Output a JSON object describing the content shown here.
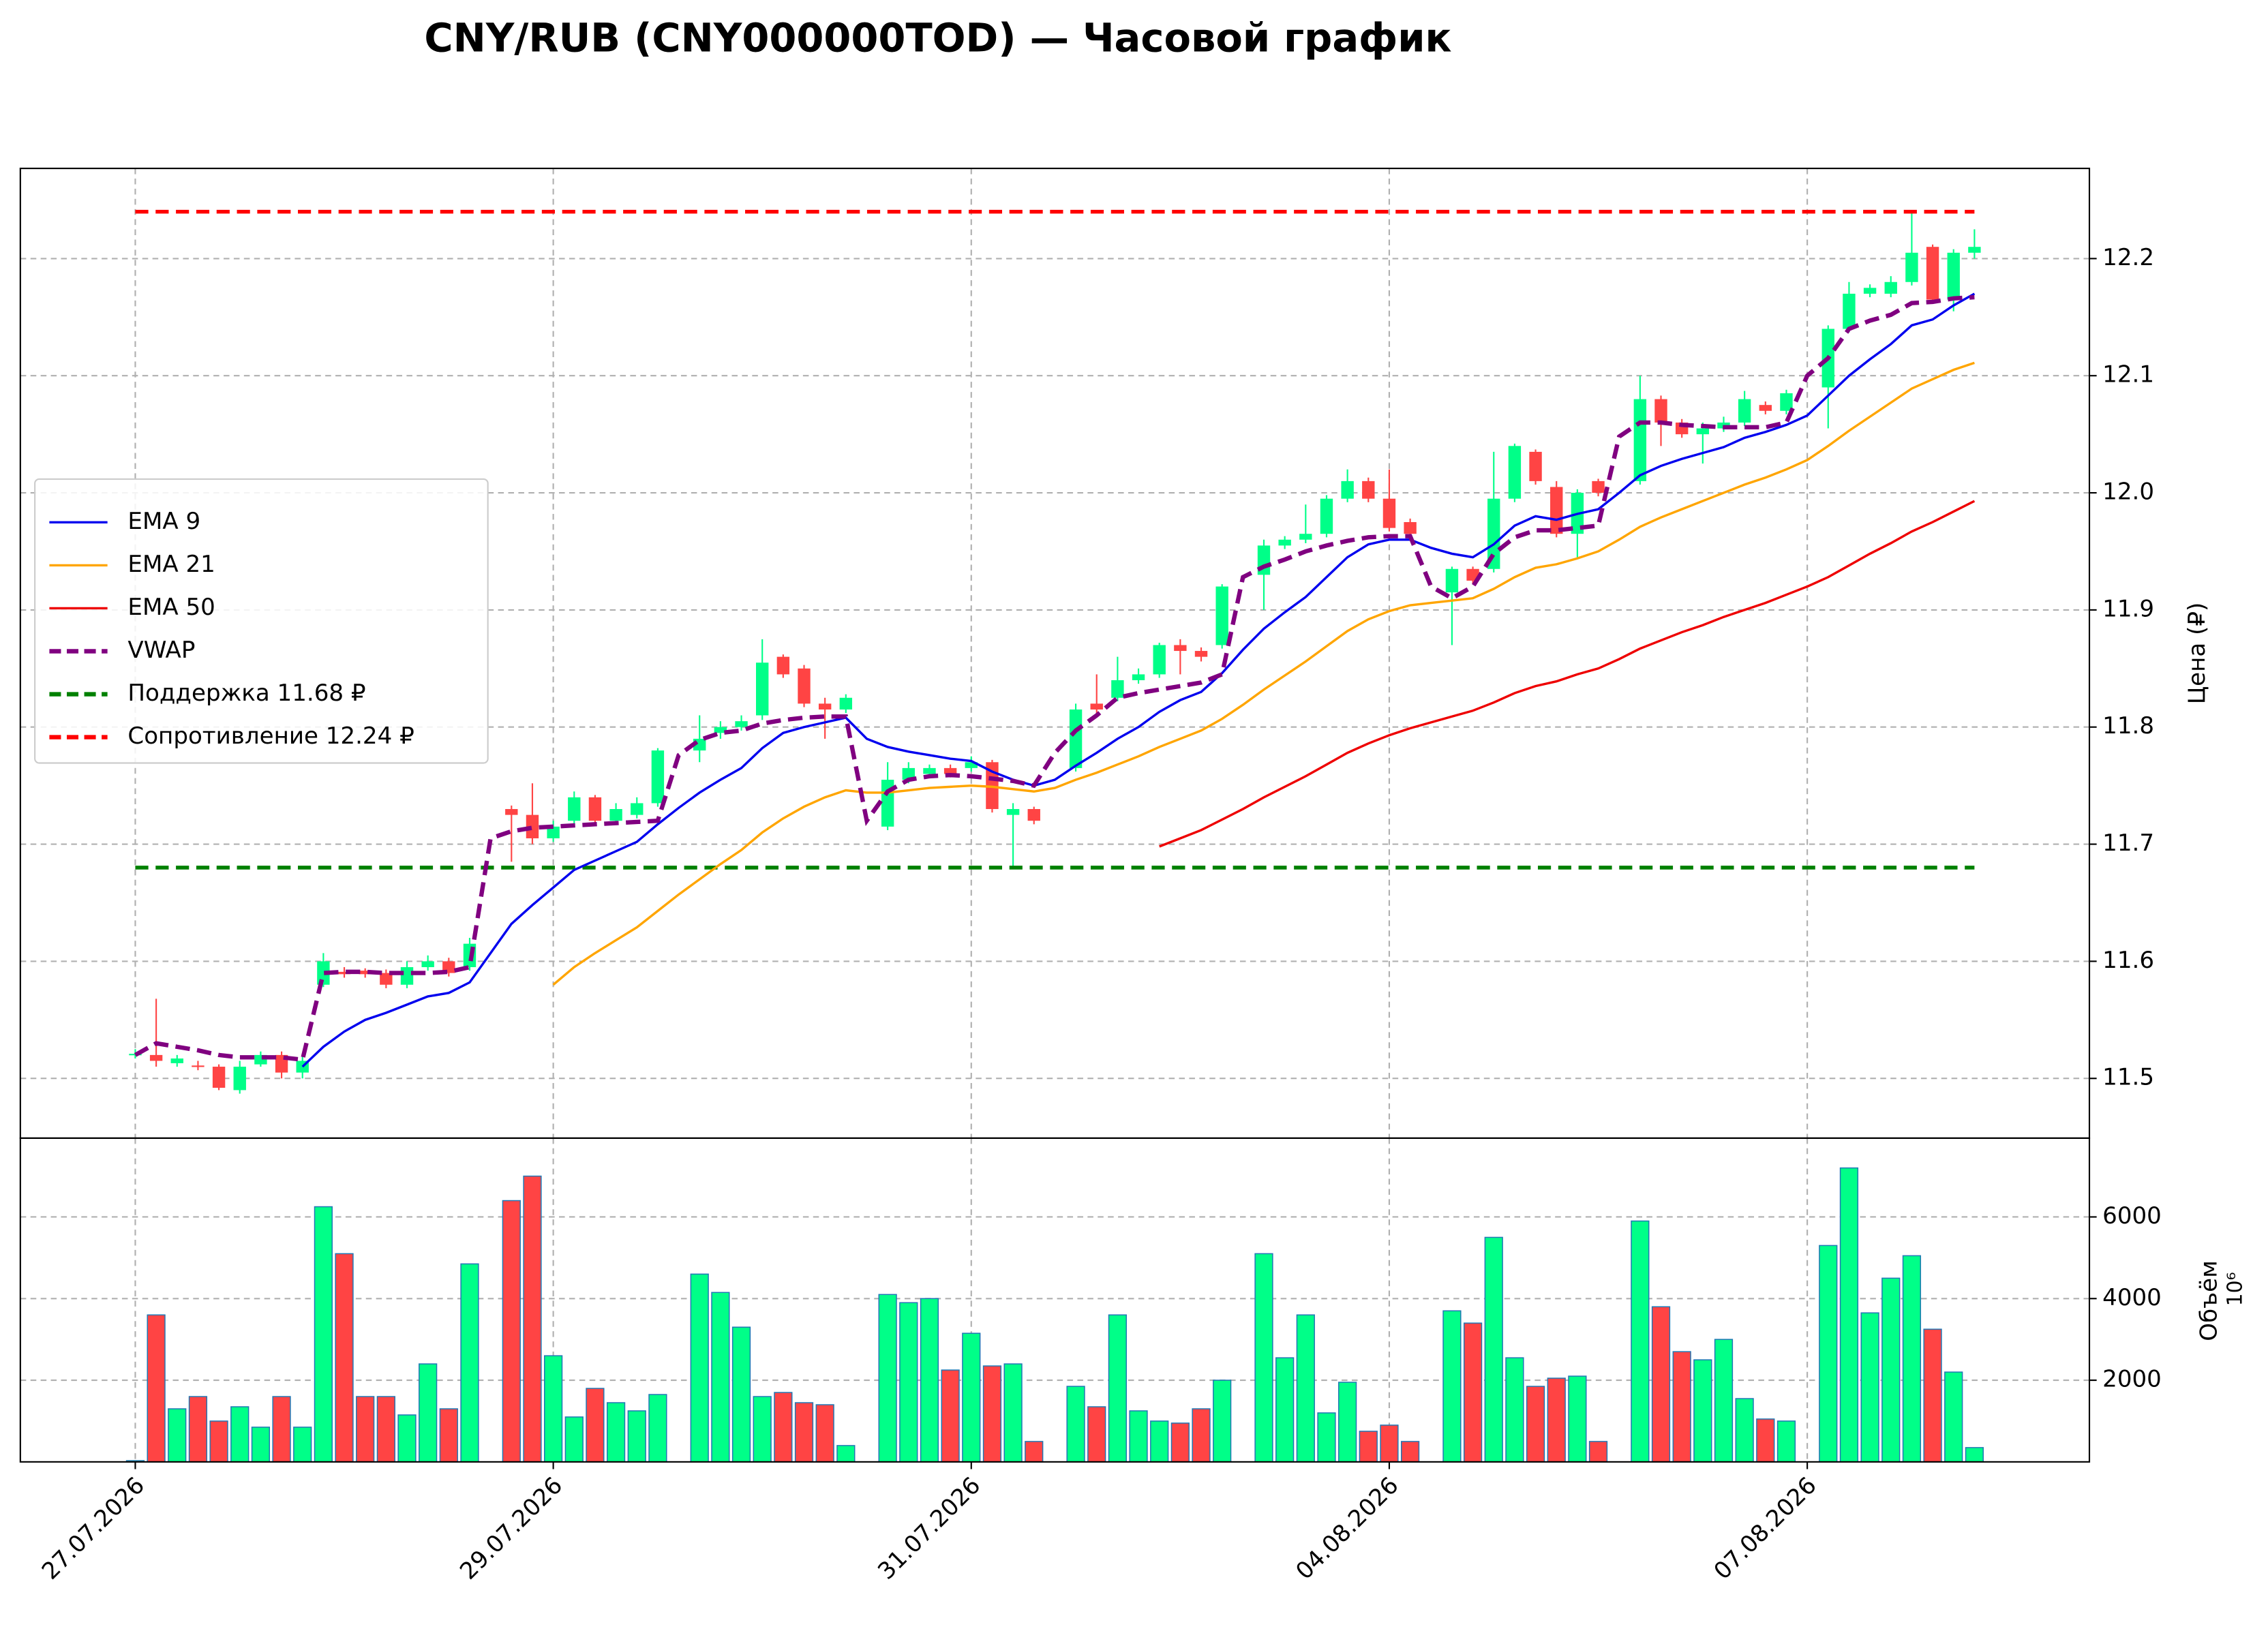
{
  "chart_data": {
    "type": "candlestick",
    "title": "CNY/RUB (CNY000000TOD) — Часовой график",
    "ylabel": "Цена (₽)",
    "volume_label": "Объём",
    "volume_offset": "10⁶",
    "up_color": "#00ff88",
    "down_color": "#ff4444",
    "grid": true,
    "legend": "center left",
    "x": [
      0,
      1,
      2,
      3,
      4,
      5,
      6,
      7,
      8,
      9,
      10,
      11,
      12,
      13,
      14,
      15,
      16,
      17,
      18,
      19,
      20,
      21,
      22,
      23,
      24,
      25,
      26,
      27,
      28,
      29,
      30,
      31,
      32,
      33,
      34,
      35,
      36,
      37,
      38,
      39,
      40,
      41,
      42,
      43,
      44,
      45,
      46,
      47,
      48,
      49,
      50,
      51,
      52,
      53,
      54,
      55,
      56,
      57,
      58,
      59,
      60,
      61,
      62,
      63,
      64,
      65,
      66,
      67,
      68,
      69,
      70,
      71,
      72,
      73,
      74,
      75,
      76,
      77,
      78,
      79,
      80,
      81,
      82,
      83,
      84,
      85,
      86,
      87,
      88
    ],
    "open": [
      11.52,
      11.52,
      11.513,
      11.511,
      11.51,
      11.49,
      11.512,
      11.52,
      11.505,
      11.58,
      11.591,
      11.592,
      11.59,
      11.58,
      11.595,
      11.6,
      11.595,
      null,
      11.73,
      11.725,
      11.705,
      11.72,
      11.74,
      11.72,
      11.725,
      11.735,
      null,
      11.78,
      11.795,
      11.8,
      11.81,
      11.86,
      11.85,
      11.82,
      11.815,
      null,
      11.715,
      11.755,
      11.76,
      11.765,
      11.765,
      11.77,
      11.725,
      11.73,
      null,
      11.765,
      11.82,
      11.825,
      11.84,
      11.845,
      11.87,
      11.865,
      11.87,
      null,
      11.93,
      11.955,
      11.96,
      11.965,
      11.995,
      12.01,
      11.995,
      11.975,
      null,
      11.915,
      11.935,
      11.935,
      11.995,
      12.035,
      12.005,
      11.965,
      12.01,
      null,
      12.01,
      12.08,
      12.06,
      12.05,
      12.055,
      12.06,
      12.075,
      12.07,
      null,
      12.09,
      12.14,
      12.17,
      12.17,
      12.18,
      12.21,
      12.165,
      12.205
    ],
    "high": [
      11.525,
      11.568,
      11.52,
      11.515,
      11.512,
      11.515,
      11.523,
      11.523,
      11.52,
      11.607,
      11.595,
      11.594,
      11.593,
      11.6,
      11.605,
      11.603,
      11.62,
      null,
      11.733,
      11.752,
      11.72,
      11.745,
      11.742,
      11.735,
      11.74,
      11.782,
      null,
      11.81,
      11.805,
      11.81,
      11.875,
      11.862,
      11.853,
      11.825,
      11.828,
      null,
      11.77,
      11.77,
      11.768,
      11.768,
      11.775,
      11.772,
      11.735,
      11.732,
      null,
      11.82,
      11.845,
      11.86,
      11.85,
      11.872,
      11.875,
      11.868,
      11.922,
      null,
      11.96,
      11.963,
      11.99,
      11.998,
      12.02,
      12.013,
      12.02,
      11.978,
      null,
      11.937,
      11.937,
      12.035,
      12.042,
      12.037,
      12.01,
      12.003,
      12.012,
      null,
      12.1,
      12.083,
      12.063,
      12.06,
      12.065,
      12.087,
      12.078,
      12.088,
      null,
      12.143,
      12.18,
      12.178,
      12.185,
      12.24,
      12.212,
      12.208,
      12.225
    ],
    "low": [
      11.517,
      11.51,
      11.51,
      11.507,
      11.49,
      11.487,
      11.51,
      11.5,
      11.5,
      11.578,
      11.586,
      11.586,
      11.577,
      11.577,
      11.592,
      11.587,
      11.592,
      null,
      11.685,
      11.7,
      11.702,
      11.716,
      11.717,
      11.717,
      11.722,
      11.732,
      null,
      11.77,
      11.79,
      11.797,
      11.806,
      11.842,
      11.817,
      11.79,
      11.812,
      null,
      11.712,
      11.752,
      11.757,
      11.757,
      11.762,
      11.727,
      11.68,
      11.717,
      null,
      11.762,
      11.812,
      11.822,
      11.837,
      11.842,
      11.845,
      11.856,
      11.867,
      null,
      11.9,
      11.952,
      11.957,
      11.962,
      11.992,
      11.992,
      11.967,
      11.962,
      null,
      11.87,
      11.922,
      11.932,
      11.992,
      12.007,
      11.962,
      11.945,
      11.997,
      null,
      12.007,
      12.04,
      12.047,
      12.025,
      12.052,
      12.057,
      12.067,
      12.067,
      null,
      12.055,
      12.137,
      12.167,
      12.167,
      12.177,
      12.162,
      12.155,
      12.2
    ],
    "close": [
      11.521,
      11.515,
      11.517,
      11.51,
      11.492,
      11.51,
      11.52,
      11.505,
      11.515,
      11.6,
      11.589,
      11.589,
      11.58,
      11.595,
      11.6,
      11.59,
      11.615,
      null,
      11.725,
      11.705,
      11.715,
      11.74,
      11.72,
      11.73,
      11.735,
      11.78,
      null,
      11.79,
      11.8,
      11.805,
      11.855,
      11.845,
      11.82,
      11.815,
      11.825,
      null,
      11.755,
      11.765,
      11.765,
      11.76,
      11.77,
      11.73,
      11.73,
      11.72,
      null,
      11.815,
      11.815,
      11.84,
      11.845,
      11.87,
      11.865,
      11.86,
      11.92,
      null,
      11.955,
      11.96,
      11.965,
      11.995,
      12.01,
      11.995,
      11.97,
      11.965,
      null,
      11.935,
      11.925,
      11.995,
      12.04,
      12.01,
      11.965,
      12.0,
      12.0,
      null,
      12.08,
      12.06,
      12.05,
      12.055,
      12.06,
      12.08,
      12.07,
      12.085,
      null,
      12.14,
      12.17,
      12.175,
      12.18,
      12.205,
      12.165,
      12.205,
      12.21
    ],
    "volume": [
      30,
      3600,
      1300,
      1600,
      1000,
      1350,
      850,
      1600,
      850,
      6250,
      5100,
      1600,
      1600,
      1150,
      2400,
      1300,
      4850,
      null,
      6400,
      7000,
      2600,
      1100,
      1800,
      1450,
      1250,
      1650,
      null,
      4600,
      4150,
      3300,
      1600,
      1700,
      1450,
      1400,
      400,
      null,
      4100,
      3900,
      4000,
      2250,
      3150,
      2350,
      2400,
      500,
      null,
      1850,
      1350,
      3600,
      1250,
      1000,
      950,
      1300,
      2000,
      null,
      5100,
      2550,
      3600,
      1200,
      1950,
      750,
      900,
      500,
      null,
      3700,
      3400,
      5500,
      2550,
      1850,
      2050,
      2100,
      500,
      null,
      5900,
      3800,
      2700,
      2500,
      3000,
      1550,
      1050,
      1000,
      null,
      5300,
      7200,
      3650,
      4500,
      5050,
      3250,
      2200,
      350
    ],
    "series": [
      {
        "name": "EMA 9",
        "color": "#0000ee",
        "dashed": false,
        "values": [
          null,
          null,
          null,
          null,
          null,
          null,
          null,
          null,
          11.51,
          11.527,
          11.54,
          11.55,
          11.556,
          11.563,
          11.57,
          11.573,
          11.582,
          11.607,
          11.632,
          11.648,
          11.663,
          11.678,
          11.686,
          11.694,
          11.702,
          11.717,
          11.731,
          11.744,
          11.755,
          11.765,
          11.782,
          11.795,
          11.8,
          11.804,
          11.808,
          11.79,
          11.783,
          11.779,
          11.776,
          11.773,
          11.771,
          11.762,
          11.755,
          11.75,
          11.755,
          11.767,
          11.778,
          11.79,
          11.8,
          11.813,
          11.823,
          11.83,
          11.846,
          11.866,
          11.884,
          11.898,
          11.911,
          11.928,
          11.945,
          11.956,
          11.96,
          11.96,
          11.953,
          11.948,
          11.945,
          11.956,
          11.972,
          11.98,
          11.977,
          11.982,
          11.986,
          12.0,
          12.015,
          12.023,
          12.029,
          12.034,
          12.039,
          12.047,
          12.052,
          12.058,
          12.066,
          12.083,
          12.1,
          12.114,
          12.127,
          12.143,
          12.148,
          12.16,
          12.17
        ]
      },
      {
        "name": "EMA 21",
        "color": "#ffa500",
        "dashed": false,
        "values": [
          null,
          null,
          null,
          null,
          null,
          null,
          null,
          null,
          null,
          null,
          null,
          null,
          null,
          null,
          null,
          null,
          null,
          null,
          null,
          null,
          11.58,
          11.595,
          11.607,
          11.618,
          11.629,
          11.643,
          11.657,
          11.67,
          11.683,
          11.695,
          11.71,
          11.722,
          11.732,
          11.74,
          11.746,
          11.744,
          11.744,
          11.746,
          11.748,
          11.749,
          11.75,
          11.749,
          11.747,
          11.745,
          11.748,
          11.755,
          11.761,
          11.768,
          11.775,
          11.783,
          11.79,
          11.797,
          11.807,
          11.819,
          11.832,
          11.844,
          11.856,
          11.869,
          11.882,
          11.892,
          11.899,
          11.904,
          11.906,
          11.908,
          11.91,
          11.918,
          11.928,
          11.936,
          11.939,
          11.944,
          11.95,
          11.96,
          11.971,
          11.979,
          11.986,
          11.993,
          12.0,
          12.007,
          12.013,
          12.02,
          12.028,
          12.04,
          12.053,
          12.065,
          12.077,
          12.089,
          12.097,
          12.105,
          12.111
        ]
      },
      {
        "name": "EMA 50",
        "color": "#ee0000",
        "dashed": false,
        "values": [
          null,
          null,
          null,
          null,
          null,
          null,
          null,
          null,
          null,
          null,
          null,
          null,
          null,
          null,
          null,
          null,
          null,
          null,
          null,
          null,
          null,
          null,
          null,
          null,
          null,
          null,
          null,
          null,
          null,
          null,
          null,
          null,
          null,
          null,
          null,
          null,
          null,
          null,
          null,
          null,
          null,
          null,
          null,
          null,
          null,
          null,
          null,
          null,
          null,
          11.698,
          11.705,
          11.712,
          11.721,
          11.73,
          11.74,
          11.749,
          11.758,
          11.768,
          11.778,
          11.786,
          11.793,
          11.799,
          11.804,
          11.809,
          11.814,
          11.821,
          11.829,
          11.835,
          11.839,
          11.845,
          11.85,
          11.858,
          11.867,
          11.874,
          11.881,
          11.887,
          11.894,
          11.9,
          11.906,
          11.913,
          11.92,
          11.928,
          11.938,
          11.948,
          11.957,
          11.967,
          11.975,
          11.984,
          11.993
        ]
      },
      {
        "name": "VWAP",
        "color": "#800080",
        "dashed": true,
        "values": [
          11.52,
          11.53,
          11.527,
          11.524,
          11.52,
          11.518,
          11.518,
          11.518,
          11.516,
          11.59,
          11.591,
          11.591,
          11.59,
          11.59,
          11.59,
          11.591,
          11.595,
          11.705,
          11.711,
          11.714,
          11.715,
          11.716,
          11.717,
          11.718,
          11.719,
          11.72,
          11.776,
          11.789,
          11.795,
          11.797,
          11.803,
          11.806,
          11.808,
          11.809,
          11.809,
          11.72,
          11.745,
          11.755,
          11.758,
          11.759,
          11.758,
          11.756,
          11.754,
          11.75,
          11.778,
          11.797,
          11.81,
          11.825,
          11.829,
          11.832,
          11.835,
          11.838,
          11.845,
          11.928,
          11.937,
          11.943,
          11.95,
          11.955,
          11.959,
          11.962,
          11.963,
          11.963,
          11.92,
          11.91,
          11.92,
          11.948,
          11.962,
          11.968,
          11.968,
          11.97,
          11.972,
          12.048,
          12.06,
          12.06,
          12.058,
          12.057,
          12.056,
          12.056,
          12.056,
          12.06,
          12.1,
          12.115,
          12.14,
          12.147,
          12.152,
          12.162,
          12.163,
          12.166,
          12.167
        ]
      }
    ],
    "levels": [
      {
        "name": "Поддержка 11.68 ₽",
        "value": 11.68,
        "color": "#008000"
      },
      {
        "name": "Сопротивление 12.24 ₽",
        "value": 12.24,
        "color": "#ff0000"
      }
    ],
    "xlim": [
      -5.5,
      93.5
    ],
    "xticks": [
      {
        "value": 0,
        "label": "27.07.2026"
      },
      {
        "value": 20,
        "label": "29.07.2026"
      },
      {
        "value": 40,
        "label": "31.07.2026"
      },
      {
        "value": 60,
        "label": "04.08.2026"
      },
      {
        "value": 80,
        "label": "07.08.2026"
      }
    ],
    "ylim": [
      11.449,
      12.277
    ],
    "yticks": [
      11.5,
      11.6,
      11.7,
      11.8,
      11.9,
      {
        "value": 12,
        "label": "12.0"
      },
      12.1,
      12.2
    ],
    "volume_ylim": [
      0,
      7930
    ],
    "volume_yticks": [
      2000,
      4000,
      6000
    ]
  }
}
